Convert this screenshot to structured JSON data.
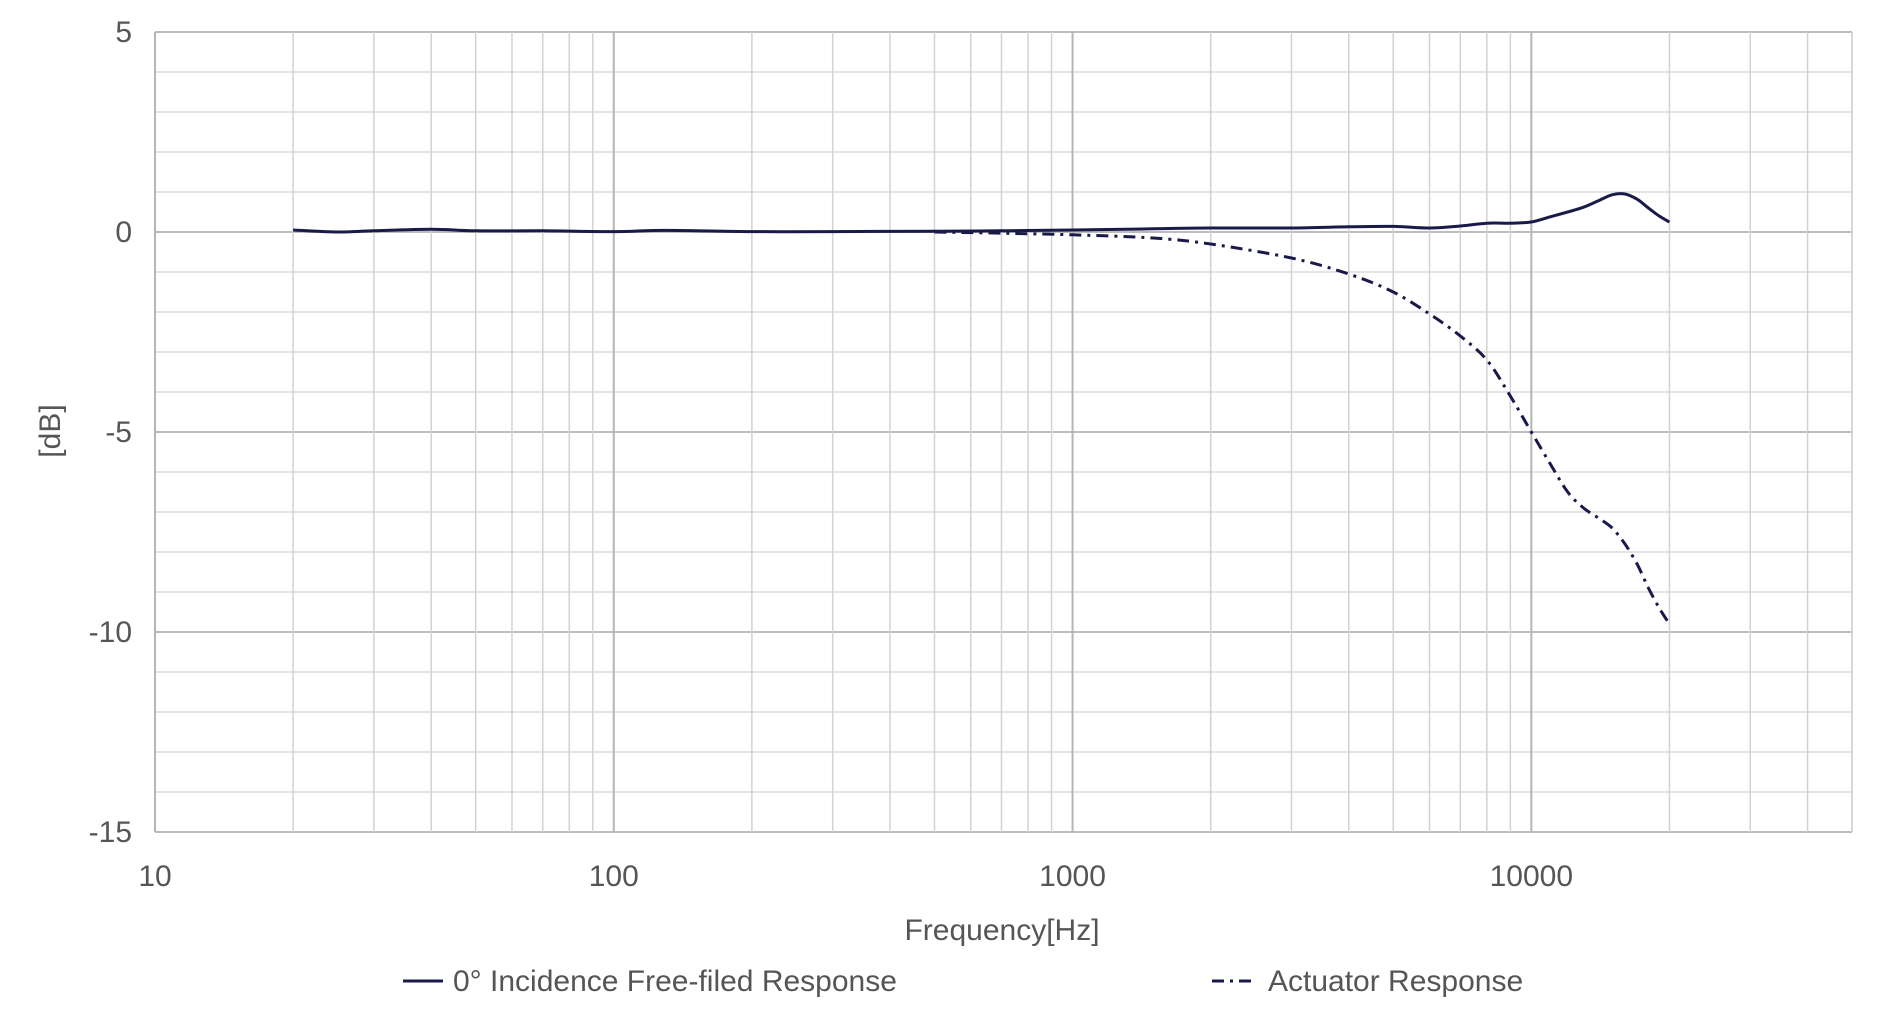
{
  "chart_data": {
    "type": "line",
    "title": "",
    "xlabel": "Frequency[Hz]",
    "ylabel": "[dB]",
    "x_scale": "log",
    "xlim": [
      10,
      50000
    ],
    "ylim": [
      -15,
      5
    ],
    "x_ticks": [
      10,
      100,
      1000,
      10000
    ],
    "x_tick_labels": [
      "10",
      "100",
      "1000",
      "10000"
    ],
    "y_ticks": [
      5,
      0,
      -5,
      -10,
      -15
    ],
    "y_tick_labels": [
      "5",
      "0",
      "-5",
      "-10",
      "-15"
    ],
    "y_minor_step": 1,
    "grid": true,
    "legend_position": "bottom",
    "series": [
      {
        "name": "0° Incidence Free-filed Response",
        "color": "#1a1a4a",
        "style": "solid",
        "x": [
          20,
          25,
          30,
          40,
          50,
          70,
          100,
          130,
          200,
          300,
          500,
          700,
          1000,
          1500,
          2000,
          3000,
          4000,
          5000,
          6000,
          7000,
          8000,
          9000,
          10000,
          11000,
          12000,
          13000,
          14000,
          15000,
          16000,
          17000,
          18000,
          19000,
          20000
        ],
        "values": [
          0.05,
          0.0,
          0.03,
          0.07,
          0.03,
          0.03,
          0.01,
          0.04,
          0.01,
          0.01,
          0.02,
          0.03,
          0.05,
          0.08,
          0.1,
          0.1,
          0.13,
          0.14,
          0.1,
          0.15,
          0.22,
          0.22,
          0.25,
          0.38,
          0.5,
          0.62,
          0.78,
          0.93,
          0.95,
          0.82,
          0.6,
          0.4,
          0.25
        ]
      },
      {
        "name": "Actuator Response",
        "color": "#1a1a4a",
        "style": "dashdot",
        "x": [
          500,
          700,
          1000,
          1500,
          2000,
          3000,
          4000,
          5000,
          6000,
          7000,
          8000,
          9000,
          10000,
          11000,
          12000,
          13000,
          14000,
          15000,
          16000,
          17000,
          18000,
          19000,
          20000
        ],
        "values": [
          0.0,
          -0.03,
          -0.07,
          -0.15,
          -0.3,
          -0.65,
          -1.05,
          -1.5,
          -2.05,
          -2.6,
          -3.2,
          -4.1,
          -5.0,
          -5.8,
          -6.5,
          -6.9,
          -7.15,
          -7.4,
          -7.8,
          -8.3,
          -8.9,
          -9.4,
          -9.8
        ]
      }
    ]
  }
}
